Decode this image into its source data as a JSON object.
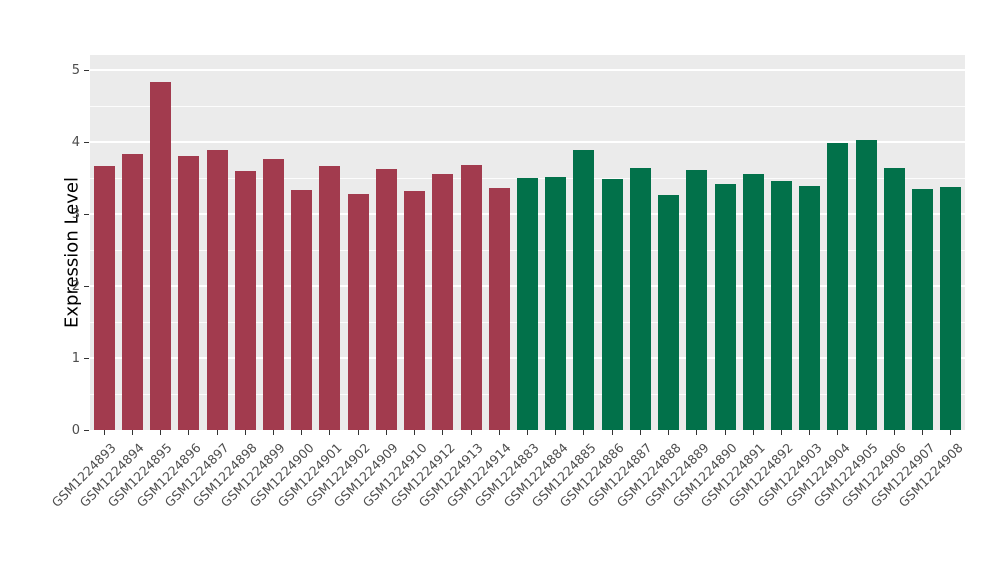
{
  "chart_data": {
    "type": "bar",
    "title": "",
    "xlabel": "",
    "ylabel": "Expression Level",
    "ylim": [
      0,
      5
    ],
    "yticks": [
      0,
      1,
      2,
      3,
      4,
      5
    ],
    "grid": "major-and-minor-white-on-gray",
    "legend_position": "none",
    "categories": [
      "GSM1224893",
      "GSM1224894",
      "GSM1224895",
      "GSM1224896",
      "GSM1224897",
      "GSM1224898",
      "GSM1224899",
      "GSM1224900",
      "GSM1224901",
      "GSM1224902",
      "GSM1224909",
      "GSM1224910",
      "GSM1224912",
      "GSM1224913",
      "GSM1224914",
      "GSM1224883",
      "GSM1224884",
      "GSM1224885",
      "GSM1224886",
      "GSM1224887",
      "GSM1224888",
      "GSM1224889",
      "GSM1224890",
      "GSM1224891",
      "GSM1224892",
      "GSM1224903",
      "GSM1224904",
      "GSM1224905",
      "GSM1224906",
      "GSM1224907",
      "GSM1224908"
    ],
    "values": [
      3.67,
      3.83,
      4.84,
      3.8,
      3.89,
      3.6,
      3.77,
      3.33,
      3.67,
      3.28,
      3.63,
      3.32,
      3.56,
      3.68,
      3.36,
      3.5,
      3.52,
      3.89,
      3.48,
      3.64,
      3.26,
      3.61,
      3.42,
      3.55,
      3.46,
      3.39,
      3.99,
      4.03,
      3.64,
      3.35,
      3.38
    ],
    "bar_group": [
      "group1",
      "group1",
      "group1",
      "group1",
      "group1",
      "group1",
      "group1",
      "group1",
      "group1",
      "group1",
      "group1",
      "group1",
      "group1",
      "group1",
      "group1",
      "group2",
      "group2",
      "group2",
      "group2",
      "group2",
      "group2",
      "group2",
      "group2",
      "group2",
      "group2",
      "group2",
      "group2",
      "group2",
      "group2",
      "group2",
      "group2"
    ],
    "group_colors": {
      "group1": "#A23B4E",
      "group2": "#02714A"
    },
    "panel_background": "#EBEBEB",
    "gridline_color": "#FFFFFF"
  }
}
